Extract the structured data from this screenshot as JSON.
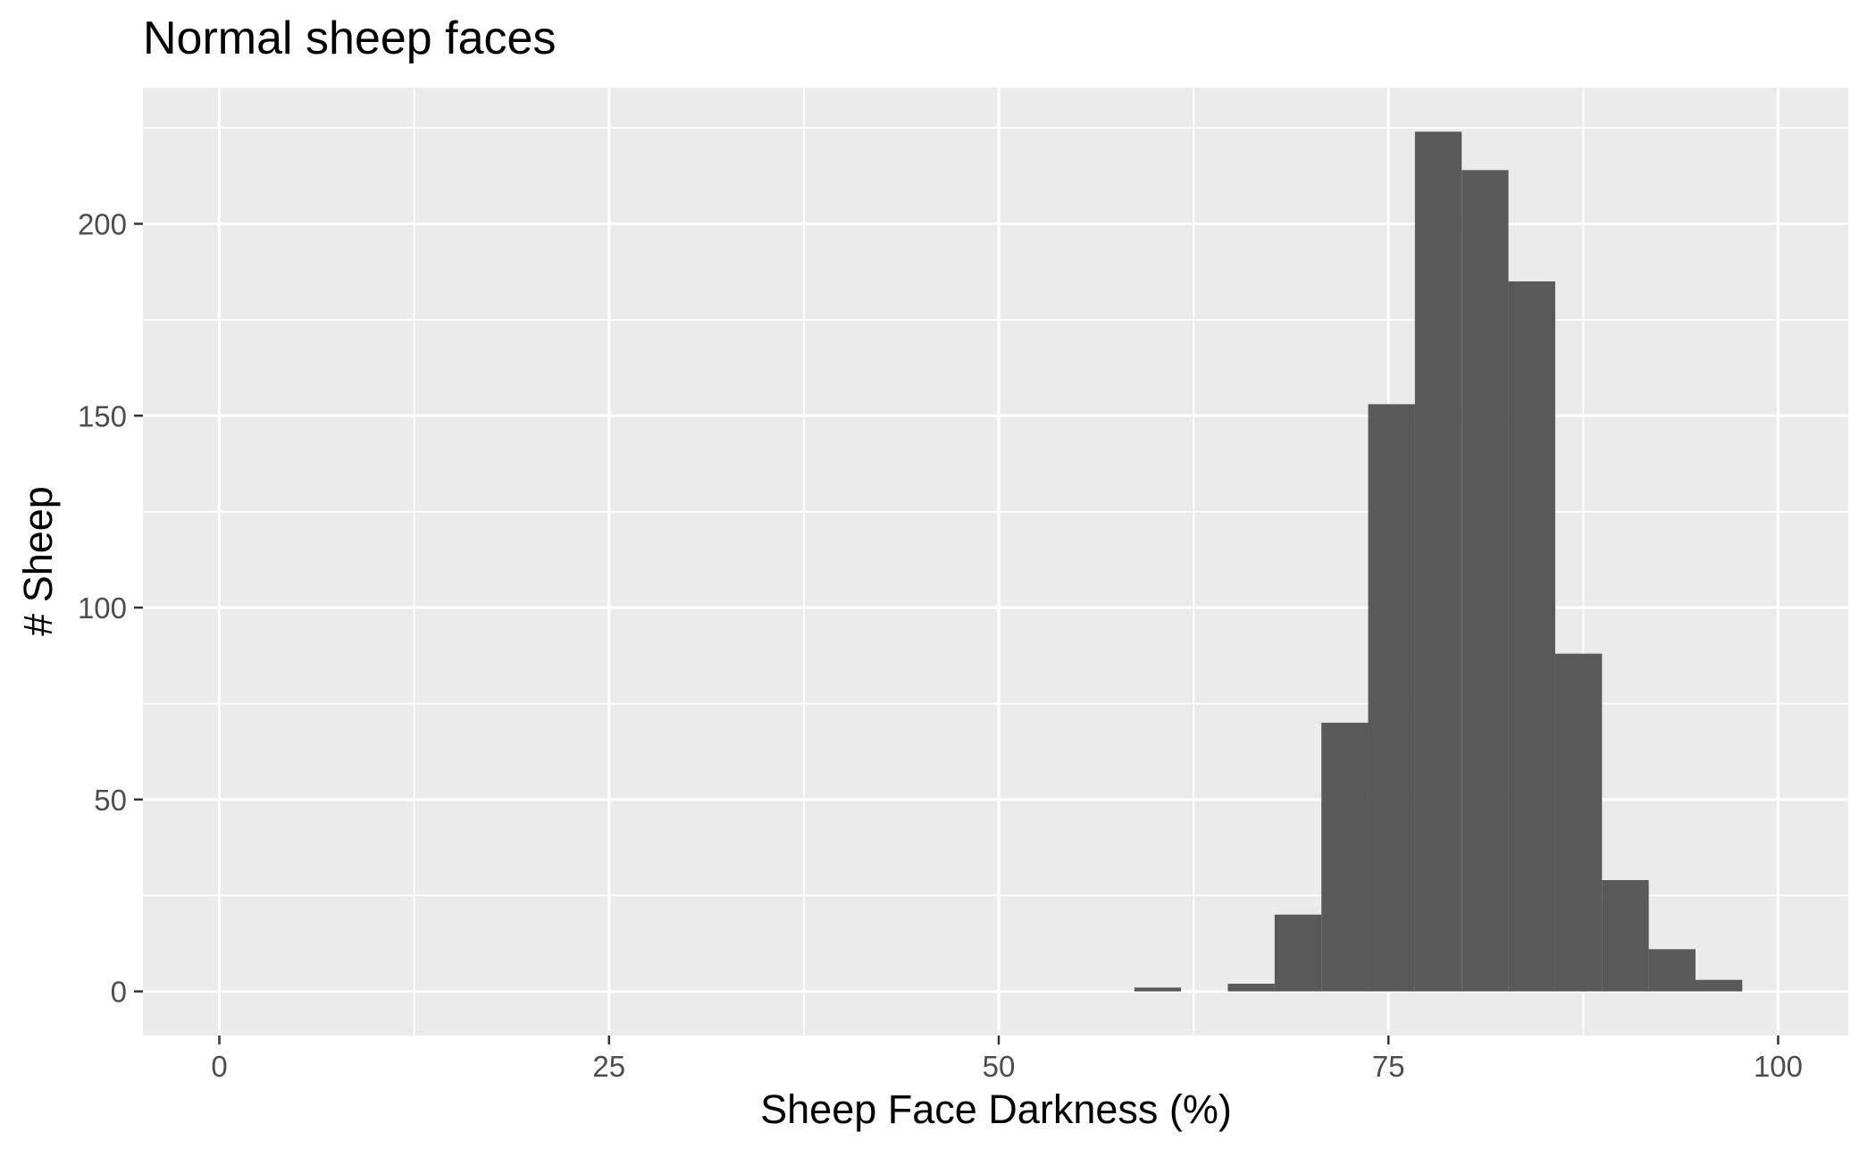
{
  "chart_data": {
    "type": "bar",
    "title": "Normal sheep faces",
    "xlabel": "Sheep Face Darkness (%)",
    "ylabel": "# Sheep",
    "xlim": [
      -4.9,
      104.5
    ],
    "ylim": [
      -11.5,
      235.5
    ],
    "x_ticks": [
      0,
      25,
      50,
      75,
      100
    ],
    "x_tick_labels": [
      "0",
      "25",
      "50",
      "75",
      "100"
    ],
    "y_ticks": [
      0,
      50,
      100,
      150,
      200
    ],
    "y_tick_labels": [
      "0",
      "50",
      "100",
      "150",
      "200"
    ],
    "x_minor_ticks": [
      12.5,
      37.5,
      62.5,
      87.5
    ],
    "y_minor_ticks": [
      25,
      75,
      125,
      175,
      225
    ],
    "bins": [
      {
        "x0": 58.7,
        "x1": 61.7,
        "count": 1
      },
      {
        "x0": 61.7,
        "x1": 64.7,
        "count": 0
      },
      {
        "x0": 64.7,
        "x1": 67.7,
        "count": 2
      },
      {
        "x0": 67.7,
        "x1": 70.7,
        "count": 20
      },
      {
        "x0": 70.7,
        "x1": 73.7,
        "count": 70
      },
      {
        "x0": 73.7,
        "x1": 76.7,
        "count": 153
      },
      {
        "x0": 76.7,
        "x1": 79.7,
        "count": 224
      },
      {
        "x0": 79.7,
        "x1": 82.7,
        "count": 214
      },
      {
        "x0": 82.7,
        "x1": 85.7,
        "count": 185
      },
      {
        "x0": 85.7,
        "x1": 88.7,
        "count": 88
      },
      {
        "x0": 88.7,
        "x1": 91.7,
        "count": 29
      },
      {
        "x0": 91.7,
        "x1": 94.7,
        "count": 11
      },
      {
        "x0": 94.7,
        "x1": 97.7,
        "count": 3
      }
    ],
    "grid": true,
    "colors": {
      "panel_background": "#ebebeb",
      "grid_major": "#ffffff",
      "bar_fill": "#595959",
      "tick_text": "#4d4d4d",
      "tick_mark": "#333333"
    }
  }
}
